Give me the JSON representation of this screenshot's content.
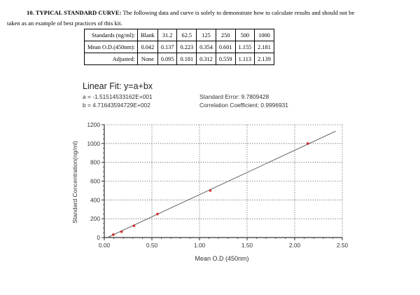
{
  "intro": {
    "section_number": "10.",
    "heading": "TYPICAL STANDARD CURVE:",
    "text_line1": "The following data and curve is solely to demonstrate how to calculate results and should not be",
    "text_line2": "taken as an example of best practices of this kit."
  },
  "table": {
    "rows": [
      {
        "label": "Standards (ng/ml):",
        "cells": [
          "Blank",
          "31.2",
          "62.5",
          "125",
          "250",
          "500",
          "1000"
        ]
      },
      {
        "label": "Mean O.D.(450nm):",
        "cells": [
          "0.042",
          "0.137",
          "0.223",
          "0.354",
          "0.601",
          "1.155",
          "2.181"
        ]
      },
      {
        "label": "Adjusted:",
        "cells": [
          "None",
          "0.095",
          "0.181",
          "0.312",
          "0.559",
          "1.113",
          "2.139"
        ]
      }
    ]
  },
  "fit": {
    "title": "Linear Fit: y=a+bx",
    "a": "a = -1.51514533162E+001",
    "b": "b = 4.71643594729E+002",
    "standard_error": "Standard Error: 9.7809428",
    "correlation": "Correlation Coefficient: 0.9996931"
  },
  "chart_data": {
    "type": "scatter",
    "xlabel": "Mean O.D (450nm)",
    "ylabel": "Standard Concentration(ng/ml)",
    "xlim": [
      0,
      2.5
    ],
    "ylim": [
      0,
      1200
    ],
    "x_ticks": [
      "0.00",
      "0.50",
      "1.00",
      "1.50",
      "2.00",
      "2.50"
    ],
    "y_ticks": [
      "0",
      "200",
      "400",
      "600",
      "800",
      "1000",
      "1200"
    ],
    "grid": true,
    "points": [
      {
        "x": 0.095,
        "y": 31.2
      },
      {
        "x": 0.181,
        "y": 62.5
      },
      {
        "x": 0.312,
        "y": 125
      },
      {
        "x": 0.559,
        "y": 250
      },
      {
        "x": 1.113,
        "y": 500
      },
      {
        "x": 2.139,
        "y": 1000
      }
    ],
    "fit_line": {
      "intercept": -15.1514533162,
      "slope": 471.643594729
    },
    "point_color": "#d22d2d",
    "line_color": "#666666",
    "grid_color": "#555555"
  }
}
